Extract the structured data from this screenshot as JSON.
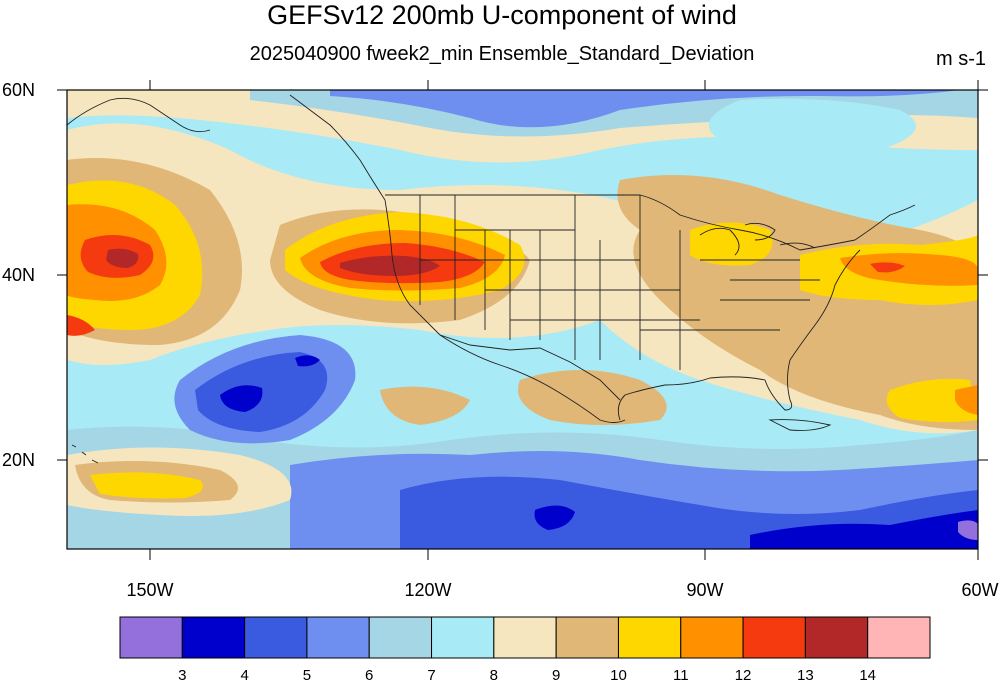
{
  "header": {
    "title": "GEFSv12 200mb U-component of wind",
    "subtitle": "2025040900 fweek2_min Ensemble_Standard_Deviation",
    "units": "m s-1"
  },
  "map": {
    "lat_labels": [
      "60N",
      "40N",
      "20N"
    ],
    "lon_labels": [
      "150W",
      "120W",
      "90W",
      "60W"
    ]
  },
  "colorbar": {
    "labels": [
      "3",
      "4",
      "5",
      "6",
      "7",
      "8",
      "9",
      "10",
      "11",
      "12",
      "13",
      "14"
    ],
    "colors": [
      "#9370db",
      "#0000cd",
      "#3a5ae0",
      "#6f8ff0",
      "#a5d6e6",
      "#a8eaf5",
      "#f5e6c0",
      "#e0b777",
      "#ffd700",
      "#ff9000",
      "#f53a10",
      "#b22828",
      "#ffb5b5"
    ]
  },
  "palette": {
    "ocean_bg": "#a8eaf5",
    "c_tan": "#f5e6c0",
    "c_brown": "#e0b777",
    "c_yellow": "#ffd700",
    "c_orange": "#ff9000",
    "c_red": "#f53a10",
    "c_darkred": "#b22828",
    "c_lightblue": "#a5d6e6",
    "c_midblue": "#6f8ff0",
    "c_blue": "#3a5ae0",
    "c_navy": "#0000cd",
    "c_purple": "#9370db"
  }
}
